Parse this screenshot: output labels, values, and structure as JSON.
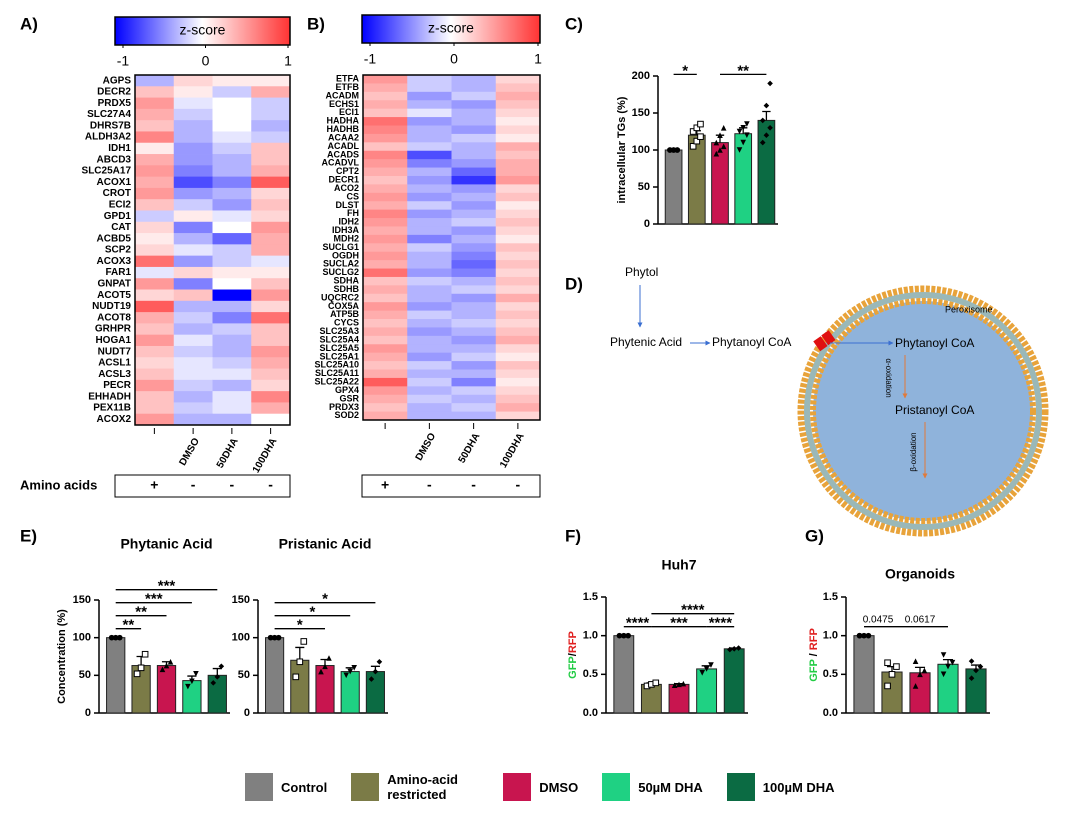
{
  "chart_data": [
    {
      "type": "heatmap",
      "panel": "A)",
      "colorbar_label": "z-score",
      "zlim": [
        -1,
        1
      ],
      "zticks": [
        -1,
        0,
        1
      ],
      "colormap": [
        "#0000ff",
        "#ffffff",
        "#ff3333"
      ],
      "rows": [
        "AGPS",
        "DECR2",
        "PRDX5",
        "SLC27A4",
        "DHRS7B",
        "ALDH3A2",
        "IDH1",
        "ABCD3",
        "SLC25A17",
        "ACOX1",
        "CROT",
        "ECI2",
        "GPD1",
        "CAT",
        "ACBD5",
        "SCP2",
        "ACOX3",
        "FAR1",
        "GNPAT",
        "ACOT5",
        "NUDT19",
        "ACOT8",
        "GRHPR",
        "HOGA1",
        "NUDT7",
        "ACSL1",
        "ACSL3",
        "PECR",
        "EHHADH",
        "PEX11B",
        "ACOX2"
      ],
      "columns": [
        null,
        "DMSO",
        "50DHA",
        "100DHA"
      ],
      "condition_label": "Amino acids",
      "conditions": [
        "+",
        "-",
        "-",
        "-"
      ],
      "values": [
        [
          -0.3,
          0.2,
          0.1,
          0.1
        ],
        [
          0.3,
          0.1,
          -0.2,
          0.4
        ],
        [
          0.5,
          -0.1,
          0.0,
          -0.2
        ],
        [
          0.4,
          -0.2,
          0.0,
          -0.2
        ],
        [
          0.3,
          -0.3,
          0.0,
          -0.3
        ],
        [
          0.6,
          -0.3,
          -0.1,
          -0.2
        ],
        [
          0.1,
          -0.4,
          -0.2,
          0.3
        ],
        [
          0.4,
          -0.4,
          -0.3,
          0.3
        ],
        [
          0.5,
          -0.5,
          -0.3,
          0.4
        ],
        [
          0.4,
          -0.7,
          -0.5,
          0.8
        ],
        [
          0.5,
          -0.4,
          -0.3,
          0.2
        ],
        [
          0.3,
          -0.2,
          -0.4,
          0.3
        ],
        [
          -0.2,
          0.1,
          -0.1,
          0.2
        ],
        [
          0.2,
          -0.5,
          0.0,
          0.5
        ],
        [
          0.1,
          -0.3,
          -0.6,
          0.4
        ],
        [
          0.2,
          -0.1,
          -0.2,
          0.4
        ],
        [
          0.7,
          -0.4,
          -0.2,
          -0.1
        ],
        [
          -0.1,
          0.2,
          0.1,
          0.1
        ],
        [
          0.5,
          -0.5,
          0.0,
          0.3
        ],
        [
          0.2,
          0.3,
          -1.0,
          0.5
        ],
        [
          0.8,
          -0.3,
          -0.3,
          0.2
        ],
        [
          0.4,
          -0.2,
          -0.5,
          0.7
        ],
        [
          0.3,
          -0.3,
          -0.2,
          0.3
        ],
        [
          0.5,
          -0.1,
          -0.3,
          0.3
        ],
        [
          0.3,
          -0.2,
          -0.3,
          0.5
        ],
        [
          0.2,
          -0.1,
          -0.2,
          0.4
        ],
        [
          0.3,
          -0.1,
          -0.1,
          0.3
        ],
        [
          0.5,
          -0.2,
          -0.3,
          0.2
        ],
        [
          0.3,
          -0.3,
          -0.1,
          0.6
        ],
        [
          0.3,
          -0.2,
          -0.1,
          0.4
        ],
        [
          0.5,
          -0.3,
          -0.3,
          0.0
        ]
      ]
    },
    {
      "type": "heatmap",
      "panel": "B)",
      "colorbar_label": "z-score",
      "zlim": [
        -1,
        1
      ],
      "zticks": [
        -1,
        0,
        1
      ],
      "colormap": [
        "#0000ff",
        "#ffffff",
        "#ff3333"
      ],
      "rows": [
        "ETFA",
        "ETFB",
        "ACADM",
        "ECHS1",
        "ECI1",
        "HADHA",
        "HADHB",
        "ACAA2",
        "ACADL",
        "ACADS",
        "ACADVL",
        "CPT2",
        "DECR1",
        "ACO2",
        "CS",
        "DLST",
        "FH",
        "IDH2",
        "IDH3A",
        "MDH2",
        "SUCLG1",
        "OGDH",
        "SUCLA2",
        "SUCLG2",
        "SDHA",
        "SDHB",
        "UQCRC2",
        "COX5A",
        "ATP5B",
        "CYCS",
        "SLC25A3",
        "SLC25A4",
        "SLC25A5",
        "SLC25A1",
        "SLC25A10",
        "SLC25A11",
        "SLC25A22",
        "GPX4",
        "GSR",
        "PRDX3",
        "SOD2"
      ],
      "columns": [
        null,
        "DMSO",
        "50DHA",
        "100DHA"
      ],
      "conditions": [
        "+",
        "-",
        "-",
        "-"
      ],
      "values": [
        [
          0.5,
          -0.2,
          -0.3,
          0.2
        ],
        [
          0.4,
          -0.2,
          -0.3,
          0.3
        ],
        [
          0.3,
          -0.4,
          -0.2,
          0.4
        ],
        [
          0.4,
          -0.3,
          -0.4,
          0.3
        ],
        [
          0.3,
          -0.1,
          -0.3,
          0.2
        ],
        [
          0.7,
          -0.4,
          -0.3,
          0.1
        ],
        [
          0.6,
          -0.3,
          -0.4,
          0.2
        ],
        [
          0.5,
          -0.3,
          -0.2,
          0.1
        ],
        [
          0.3,
          -0.2,
          -0.3,
          0.4
        ],
        [
          0.6,
          -0.7,
          -0.3,
          0.3
        ],
        [
          0.5,
          -0.5,
          -0.4,
          0.4
        ],
        [
          0.4,
          -0.3,
          -0.6,
          0.4
        ],
        [
          0.3,
          -0.4,
          -0.8,
          0.5
        ],
        [
          0.4,
          -0.3,
          -0.4,
          0.2
        ],
        [
          0.5,
          -0.4,
          -0.3,
          0.3
        ],
        [
          0.4,
          -0.2,
          -0.4,
          0.1
        ],
        [
          0.6,
          -0.4,
          -0.3,
          0.2
        ],
        [
          0.5,
          -0.3,
          -0.2,
          0.3
        ],
        [
          0.4,
          -0.3,
          -0.4,
          0.2
        ],
        [
          0.5,
          -0.5,
          -0.3,
          0.1
        ],
        [
          0.4,
          -0.2,
          -0.4,
          0.3
        ],
        [
          0.5,
          -0.3,
          -0.5,
          0.2
        ],
        [
          0.4,
          -0.3,
          -0.6,
          0.3
        ],
        [
          0.7,
          -0.4,
          -0.5,
          0.2
        ],
        [
          0.3,
          -0.2,
          -0.3,
          0.3
        ],
        [
          0.4,
          -0.3,
          -0.2,
          0.2
        ],
        [
          0.3,
          -0.3,
          -0.4,
          0.4
        ],
        [
          0.5,
          -0.4,
          -0.3,
          0.2
        ],
        [
          0.4,
          -0.2,
          -0.3,
          0.3
        ],
        [
          0.3,
          -0.3,
          -0.2,
          0.2
        ],
        [
          0.4,
          -0.4,
          -0.3,
          0.3
        ],
        [
          0.3,
          -0.3,
          -0.4,
          0.4
        ],
        [
          0.5,
          -0.3,
          -0.3,
          0.2
        ],
        [
          0.4,
          -0.4,
          -0.2,
          0.1
        ],
        [
          0.3,
          -0.2,
          -0.4,
          0.3
        ],
        [
          0.4,
          -0.3,
          -0.3,
          0.2
        ],
        [
          0.8,
          -0.2,
          -0.5,
          0.1
        ],
        [
          0.5,
          -0.3,
          -0.2,
          0.2
        ],
        [
          0.4,
          -0.2,
          -0.3,
          0.3
        ],
        [
          0.3,
          -0.3,
          -0.2,
          0.4
        ],
        [
          0.4,
          -0.3,
          -0.3,
          0.2
        ]
      ]
    },
    {
      "type": "bar",
      "panel": "C)",
      "ylabel": "intracellular TGs (%)",
      "ylim": [
        0,
        200
      ],
      "yticks": [
        0,
        50,
        100,
        150,
        200
      ],
      "values": [
        100,
        120,
        110,
        122,
        140
      ],
      "errors": [
        0,
        6,
        10,
        8,
        12
      ],
      "points": [
        [
          100,
          100,
          100,
          100,
          100,
          100
        ],
        [
          105,
          112,
          118,
          125,
          130,
          135
        ],
        [
          95,
          100,
          105,
          110,
          120,
          130
        ],
        [
          100,
          110,
          120,
          125,
          130,
          135
        ],
        [
          110,
          120,
          130,
          140,
          160,
          190
        ]
      ],
      "annotations": [
        {
          "start": 0,
          "end": 1,
          "label": "*"
        },
        {
          "start": 2,
          "end": 4,
          "label": "**"
        }
      ]
    },
    {
      "type": "bar",
      "panel": "E)",
      "title": "Phytanic Acid",
      "ylabel": "Concentration (%)",
      "ylim": [
        0,
        150
      ],
      "yticks": [
        0,
        50,
        100,
        150
      ],
      "values": [
        100,
        63,
        63,
        43,
        50
      ],
      "errors": [
        0,
        12,
        5,
        6,
        9
      ],
      "points": [
        [
          100,
          100,
          100
        ],
        [
          52,
          60,
          78
        ],
        [
          58,
          63,
          68
        ],
        [
          35,
          42,
          52
        ],
        [
          40,
          48,
          62
        ]
      ],
      "annotations": [
        {
          "start": 0,
          "end": 1,
          "label": "**"
        },
        {
          "start": 0,
          "end": 2,
          "label": "**"
        },
        {
          "start": 0,
          "end": 3,
          "label": "***"
        },
        {
          "start": 0,
          "end": 4,
          "label": "***"
        }
      ]
    },
    {
      "type": "bar",
      "title": "Pristanic Acid",
      "ylim": [
        0,
        150
      ],
      "yticks": [
        0,
        50,
        100,
        150
      ],
      "values": [
        100,
        70,
        63,
        55,
        55
      ],
      "errors": [
        0,
        17,
        8,
        5,
        7
      ],
      "points": [
        [
          100,
          100,
          100
        ],
        [
          48,
          68,
          95
        ],
        [
          55,
          62,
          73
        ],
        [
          50,
          55,
          60
        ],
        [
          45,
          55,
          68
        ]
      ],
      "annotations": [
        {
          "start": 0,
          "end": 2,
          "label": "*"
        },
        {
          "start": 0,
          "end": 3,
          "label": "*"
        },
        {
          "start": 0,
          "end": 4,
          "label": "*"
        }
      ]
    },
    {
      "type": "bar",
      "panel": "F)",
      "title": "Huh7",
      "ylabel_parts": [
        {
          "text": "GFP",
          "color": "#22cc44"
        },
        {
          "text": "/",
          "color": "#000000"
        },
        {
          "text": "RFP",
          "color": "#e02020"
        }
      ],
      "ylim": [
        0,
        1.5
      ],
      "yticks": [
        {
          "value": 0,
          "label": "0.0"
        },
        0.5,
        {
          "value": 1,
          "label": "1.0"
        },
        1.5
      ],
      "values": [
        1.0,
        0.37,
        0.37,
        0.57,
        0.83
      ],
      "errors": [
        0,
        0.02,
        0.01,
        0.04,
        0.01
      ],
      "points": [
        [
          1,
          1,
          1
        ],
        [
          0.35,
          0.37,
          0.39
        ],
        [
          0.36,
          0.37,
          0.38
        ],
        [
          0.52,
          0.57,
          0.62
        ],
        [
          0.82,
          0.83,
          0.84
        ]
      ],
      "annotations": [
        {
          "start": 0,
          "end": 1,
          "label": "****"
        },
        {
          "start": 1,
          "end": 3,
          "label": "***"
        },
        {
          "start": 3,
          "end": 4,
          "label": "****"
        },
        {
          "start": 1,
          "end": 4,
          "label": "****"
        }
      ]
    },
    {
      "type": "bar",
      "panel": "G)",
      "title": "Organoids",
      "ylabel_parts": [
        {
          "text": "GFP",
          "color": "#22cc44"
        },
        {
          "text": " / ",
          "color": "#000000"
        },
        {
          "text": "RFP",
          "color": "#e02020"
        }
      ],
      "ylim": [
        0,
        1.5
      ],
      "yticks": [
        {
          "value": 0,
          "label": "0.0"
        },
        0.5,
        {
          "value": 1,
          "label": "1.0"
        },
        1.5
      ],
      "values": [
        1.0,
        0.53,
        0.52,
        0.63,
        0.57
      ],
      "errors": [
        0,
        0.07,
        0.07,
        0.06,
        0.05
      ],
      "points": [
        [
          1,
          1,
          1,
          1
        ],
        [
          0.35,
          0.5,
          0.6,
          0.65
        ],
        [
          0.35,
          0.5,
          0.55,
          0.67
        ],
        [
          0.5,
          0.6,
          0.65,
          0.75
        ],
        [
          0.45,
          0.55,
          0.6,
          0.67
        ]
      ],
      "annotations": [
        {
          "start": 0,
          "end": 1,
          "label": "0.0475"
        },
        {
          "start": 1,
          "end": 3,
          "label": "0.0617"
        }
      ]
    }
  ],
  "diagram": {
    "panel": "D)",
    "phytol": "Phytol",
    "phytenic": "Phytenic Acid",
    "phytanoyl_out": "Phytanoyl CoA",
    "peroxisome": "Peroxisome",
    "phytanoyl_in": "Phytanoyl CoA",
    "alpha": "α-oxidation",
    "pristanoyl": "Pristanoyl CoA",
    "beta": "β-oxidation"
  },
  "legend": {
    "items": [
      {
        "name": "Control",
        "color": "#808080"
      },
      {
        "name": "Amino-acid restricted",
        "color": "#7b7b47"
      },
      {
        "name": "DMSO",
        "color": "#c8154f"
      },
      {
        "name": "50µM DHA",
        "color": "#1fd183"
      },
      {
        "name": "100µM DHA",
        "color": "#0b6b43"
      }
    ]
  }
}
